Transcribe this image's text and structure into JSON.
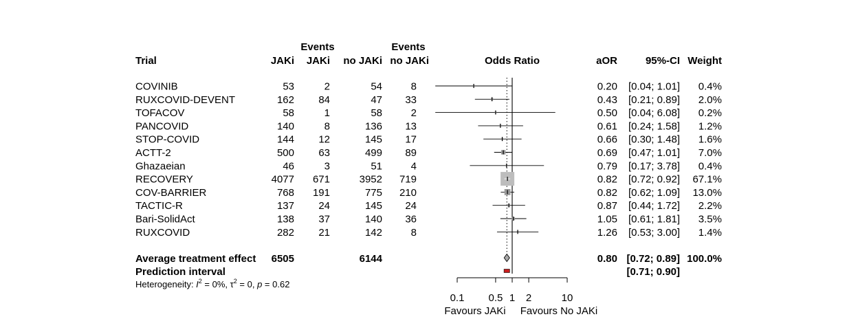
{
  "chart_data": {
    "type": "forest",
    "headers": {
      "trial": "Trial",
      "events_label": "Events",
      "jaki": "JAKi",
      "events_jaki": "JAKi",
      "nojaki": "no JAKi",
      "events_nojaki": "no JAKi",
      "or": "Odds Ratio",
      "aor": "aOR",
      "ci": "95%-CI",
      "weight": "Weight"
    },
    "rows": [
      {
        "trial": "COVINIB",
        "jaki_n": "53",
        "jaki_ev": "2",
        "nojaki_n": "54",
        "nojaki_ev": "8",
        "aor": 0.2,
        "lo": 0.04,
        "hi": 1.01,
        "aor_text": "0.20",
        "ci_text": "[0.04; 1.01]",
        "weight_text": "0.4%",
        "weight": 0.4
      },
      {
        "trial": "RUXCOVID-DEVENT",
        "jaki_n": "162",
        "jaki_ev": "84",
        "nojaki_n": "47",
        "nojaki_ev": "33",
        "aor": 0.43,
        "lo": 0.21,
        "hi": 0.89,
        "aor_text": "0.43",
        "ci_text": "[0.21; 0.89]",
        "weight_text": "2.0%",
        "weight": 2.0
      },
      {
        "trial": "TOFACOV",
        "jaki_n": "58",
        "jaki_ev": "1",
        "nojaki_n": "58",
        "nojaki_ev": "2",
        "aor": 0.5,
        "lo": 0.04,
        "hi": 6.08,
        "aor_text": "0.50",
        "ci_text": "[0.04; 6.08]",
        "weight_text": "0.2%",
        "weight": 0.2
      },
      {
        "trial": "PANCOVID",
        "jaki_n": "140",
        "jaki_ev": "8",
        "nojaki_n": "136",
        "nojaki_ev": "13",
        "aor": 0.61,
        "lo": 0.24,
        "hi": 1.58,
        "aor_text": "0.61",
        "ci_text": "[0.24; 1.58]",
        "weight_text": "1.2%",
        "weight": 1.2
      },
      {
        "trial": "STOP-COVID",
        "jaki_n": "144",
        "jaki_ev": "12",
        "nojaki_n": "145",
        "nojaki_ev": "17",
        "aor": 0.66,
        "lo": 0.3,
        "hi": 1.48,
        "aor_text": "0.66",
        "ci_text": "[0.30; 1.48]",
        "weight_text": "1.6%",
        "weight": 1.6
      },
      {
        "trial": "ACTT-2",
        "jaki_n": "500",
        "jaki_ev": "63",
        "nojaki_n": "499",
        "nojaki_ev": "89",
        "aor": 0.69,
        "lo": 0.47,
        "hi": 1.01,
        "aor_text": "0.69",
        "ci_text": "[0.47; 1.01]",
        "weight_text": "7.0%",
        "weight": 7.0
      },
      {
        "trial": "Ghazaeian",
        "jaki_n": "46",
        "jaki_ev": "3",
        "nojaki_n": "51",
        "nojaki_ev": "4",
        "aor": 0.79,
        "lo": 0.17,
        "hi": 3.78,
        "aor_text": "0.79",
        "ci_text": "[0.17; 3.78]",
        "weight_text": "0.4%",
        "weight": 0.4
      },
      {
        "trial": "RECOVERY",
        "jaki_n": "4077",
        "jaki_ev": "671",
        "nojaki_n": "3952",
        "nojaki_ev": "719",
        "aor": 0.82,
        "lo": 0.72,
        "hi": 0.92,
        "aor_text": "0.82",
        "ci_text": "[0.72; 0.92]",
        "weight_text": "67.1%",
        "weight": 67.1
      },
      {
        "trial": "COV-BARRIER",
        "jaki_n": "768",
        "jaki_ev": "191",
        "nojaki_n": "775",
        "nojaki_ev": "210",
        "aor": 0.82,
        "lo": 0.62,
        "hi": 1.09,
        "aor_text": "0.82",
        "ci_text": "[0.62; 1.09]",
        "weight_text": "13.0%",
        "weight": 13.0
      },
      {
        "trial": "TACTIC-R",
        "jaki_n": "137",
        "jaki_ev": "24",
        "nojaki_n": "145",
        "nojaki_ev": "24",
        "aor": 0.87,
        "lo": 0.44,
        "hi": 1.72,
        "aor_text": "0.87",
        "ci_text": "[0.44; 1.72]",
        "weight_text": "2.2%",
        "weight": 2.2
      },
      {
        "trial": "Bari-SolidAct",
        "jaki_n": "138",
        "jaki_ev": "37",
        "nojaki_n": "140",
        "nojaki_ev": "36",
        "aor": 1.05,
        "lo": 0.61,
        "hi": 1.81,
        "aor_text": "1.05",
        "ci_text": "[0.61; 1.81]",
        "weight_text": "3.5%",
        "weight": 3.5
      },
      {
        "trial": "RUXCOVID",
        "jaki_n": "282",
        "jaki_ev": "21",
        "nojaki_n": "142",
        "nojaki_ev": "8",
        "aor": 1.26,
        "lo": 0.53,
        "hi": 3.0,
        "aor_text": "1.26",
        "ci_text": "[0.53; 3.00]",
        "weight_text": "1.4%",
        "weight": 1.4
      }
    ],
    "summary": {
      "label": "Average treatment effect",
      "jaki_n": "6505",
      "nojaki_n": "6144",
      "aor": 0.8,
      "lo": 0.72,
      "hi": 0.89,
      "aor_text": "0.80",
      "ci_text": "[0.72; 0.89]",
      "weight_text": "100.0%"
    },
    "prediction": {
      "label": "Prediction interval",
      "lo": 0.71,
      "hi": 0.9,
      "ci_text": "[0.71; 0.90]"
    },
    "heterogeneity": {
      "prefix": "Heterogeneity: ",
      "i2_symbol": "I",
      "i2_value": " = 0%, ",
      "tau_symbol": "τ",
      "tau_value": " = 0, ",
      "p_symbol": "p",
      "p_value": " = 0.62"
    },
    "x_axis": {
      "scale": "log",
      "range": [
        0.1,
        10
      ],
      "ticks": [
        0.1,
        0.5,
        1,
        2,
        10
      ],
      "tick_labels": [
        "0.1",
        "0.5",
        "1",
        "2",
        "10"
      ],
      "left_label": "Favours JAKi",
      "right_label": "Favours No JAKi",
      "null_value": 1,
      "reference_value": 0.8
    },
    "colors": {
      "study_square": "#9a9a9a",
      "large_square": "#bdbdbd",
      "diamond_fill": "#a8a8a8",
      "prediction_fill": "#c81e1e",
      "line": "#000000"
    }
  }
}
